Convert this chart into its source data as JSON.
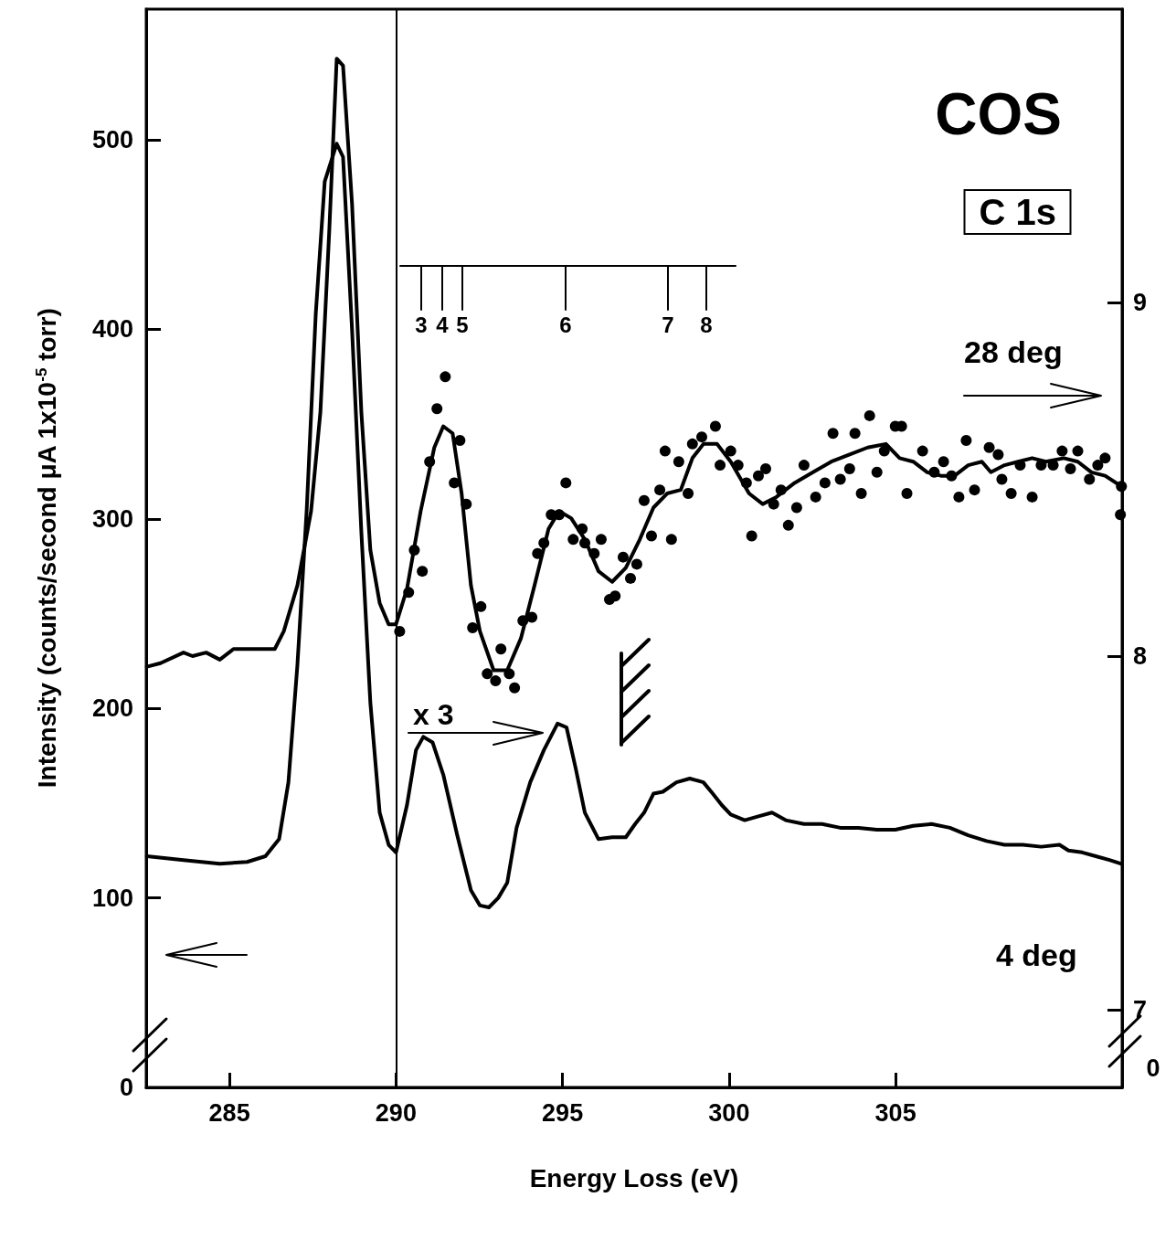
{
  "chart_data": {
    "type": "line",
    "title": "COS",
    "subtitle": "C 1s",
    "xlabel": "Energy Loss (eV)",
    "ylabel": "Intensity (counts/second μA 1x10$^{-5}$ torr)",
    "xlim": [
      282.5,
      311.8
    ],
    "xticks": [
      285,
      290,
      295,
      300,
      305
    ],
    "ylim": [
      0,
      569
    ],
    "yticks": [
      0,
      100,
      200,
      300,
      400,
      500
    ],
    "y2lim": [
      6.78,
      9.83
    ],
    "y2ticks": [
      7,
      8,
      9
    ],
    "grid": false,
    "legend": false,
    "line_style": "solid",
    "ref_lines": [
      {
        "axis": "x",
        "value": 290,
        "color": "#000000"
      }
    ],
    "annotations": [
      "x 3",
      "3",
      "4",
      "5",
      "6",
      "7",
      "8",
      "0"
    ],
    "series": [
      {
        "name": "28 deg",
        "type": "line",
        "axis": "y2",
        "marker": "none",
        "color": "#000000",
        "x": [
          282.52,
          282.93,
          283.62,
          283.89,
          284.3,
          284.71,
          285.12,
          285.26,
          285.67,
          286.36,
          286.63,
          287.04,
          287.45,
          287.73,
          288.0,
          288.22,
          288.41,
          288.68,
          288.96,
          289.23,
          289.51,
          289.78,
          290.0,
          290.33,
          290.74,
          291.15,
          291.42,
          291.7,
          291.97,
          292.25,
          292.52,
          292.93,
          293.34,
          293.75,
          294.16,
          294.58,
          294.9,
          295.26,
          295.67,
          296.08,
          296.49,
          296.9,
          297.32,
          297.73,
          298.14,
          298.55,
          298.9,
          299.23,
          299.64,
          300.05,
          300.6,
          301.01,
          301.42,
          301.97,
          302.52,
          303.07,
          303.62,
          304.16,
          304.71,
          305.12,
          305.53,
          305.95,
          306.36,
          306.77,
          307.18,
          307.59,
          307.86,
          308.27,
          308.68,
          309.1,
          309.51,
          310.05,
          310.47,
          310.88,
          311.29,
          311.78
        ],
        "values": [
          7.97,
          7.98,
          8.01,
          8.0,
          8.01,
          7.99,
          8.02,
          8.02,
          8.02,
          8.02,
          8.07,
          8.2,
          8.41,
          8.69,
          9.21,
          9.69,
          9.67,
          9.28,
          8.69,
          8.3,
          8.15,
          8.09,
          8.09,
          8.19,
          8.41,
          8.59,
          8.65,
          8.63,
          8.46,
          8.2,
          8.07,
          7.96,
          7.96,
          8.05,
          8.2,
          8.36,
          8.41,
          8.39,
          8.33,
          8.24,
          8.21,
          8.25,
          8.33,
          8.42,
          8.46,
          8.47,
          8.56,
          8.6,
          8.6,
          8.55,
          8.46,
          8.43,
          8.45,
          8.49,
          8.52,
          8.55,
          8.57,
          8.59,
          8.6,
          8.56,
          8.55,
          8.52,
          8.51,
          8.51,
          8.54,
          8.55,
          8.52,
          8.54,
          8.55,
          8.56,
          8.55,
          8.56,
          8.55,
          8.52,
          8.51,
          8.48
        ]
      },
      {
        "name": "4 deg",
        "type": "line",
        "marker": "none",
        "color": "#000000",
        "x": [
          282.52,
          283.62,
          284.71,
          285.53,
          286.08,
          286.49,
          286.77,
          287.04,
          287.32,
          287.59,
          287.86,
          288.22,
          288.41,
          288.68,
          288.96,
          289.23,
          289.51,
          289.78,
          290.0,
          290.33,
          290.6,
          290.82,
          291.1,
          291.42,
          291.84,
          292.25,
          292.52,
          292.79,
          293.07,
          293.34,
          293.62,
          294.03,
          294.44,
          294.85,
          295.12,
          295.4,
          295.67,
          296.08,
          296.49,
          296.9,
          297.18,
          297.45,
          297.73,
          298.01,
          298.42,
          298.82,
          299.23,
          299.51,
          299.78,
          300.05,
          300.47,
          300.88,
          301.29,
          301.7,
          302.25,
          302.79,
          303.34,
          303.89,
          304.44,
          304.99,
          305.53,
          306.08,
          306.63,
          307.18,
          307.73,
          308.27,
          308.82,
          309.37,
          309.92,
          310.19,
          310.6,
          311.01,
          311.42,
          311.78
        ],
        "values": [
          122,
          120,
          118,
          119,
          122,
          131,
          161,
          223,
          305,
          408,
          478,
          498,
          491,
          400,
          293,
          203,
          145,
          128,
          124,
          149,
          178,
          185,
          182,
          165,
          133,
          104,
          96,
          95,
          100,
          108,
          137,
          161,
          178,
          192,
          190,
          168,
          145,
          131,
          132,
          132,
          139,
          145,
          155,
          156,
          161,
          163,
          161,
          155,
          149,
          144,
          141,
          143,
          145,
          141,
          139,
          139,
          137,
          137,
          136,
          136,
          138,
          139,
          137,
          133,
          130,
          128,
          128,
          127,
          128,
          125,
          124,
          122,
          120,
          118
        ]
      },
      {
        "type": "scatter",
        "axis": "y2",
        "marker": "circle",
        "color": "#000000",
        "x": [
          290.11,
          290.38,
          290.55,
          290.79,
          291.01,
          291.23,
          291.48,
          291.75,
          291.92,
          292.11,
          292.3,
          292.55,
          292.74,
          292.99,
          293.15,
          293.4,
          293.56,
          293.81,
          294.08,
          294.25,
          294.44,
          294.66,
          294.9,
          295.1,
          295.32,
          295.59,
          295.67,
          295.95,
          296.16,
          296.41,
          296.58,
          296.82,
          297.04,
          297.23,
          297.45,
          297.67,
          297.92,
          298.08,
          298.27,
          298.49,
          298.77,
          298.9,
          299.18,
          299.59,
          299.73,
          300.05,
          300.27,
          300.52,
          300.68,
          300.88,
          301.1,
          301.34,
          301.56,
          301.78,
          302.03,
          302.25,
          302.6,
          302.88,
          303.12,
          303.34,
          303.62,
          303.78,
          303.97,
          304.22,
          304.44,
          304.66,
          304.99,
          305.18,
          305.34,
          305.81,
          306.16,
          306.44,
          306.68,
          306.9,
          307.12,
          307.37,
          307.81,
          308.08,
          308.19,
          308.47,
          308.74,
          309.1,
          309.37,
          309.73,
          310.0,
          310.25,
          310.47,
          310.82,
          311.07,
          311.29,
          311.75,
          311.78
        ],
        "values": [
          8.07,
          8.18,
          8.3,
          8.24,
          8.55,
          8.7,
          8.79,
          8.49,
          8.61,
          8.43,
          8.08,
          8.14,
          7.95,
          7.93,
          8.02,
          7.95,
          7.91,
          8.1,
          8.11,
          8.29,
          8.32,
          8.4,
          8.4,
          8.49,
          8.33,
          8.36,
          8.32,
          8.29,
          8.33,
          8.16,
          8.17,
          8.28,
          8.22,
          8.26,
          8.44,
          8.34,
          8.47,
          8.58,
          8.33,
          8.55,
          8.46,
          8.6,
          8.62,
          8.65,
          8.54,
          8.58,
          8.54,
          8.49,
          8.34,
          8.51,
          8.53,
          8.43,
          8.47,
          8.37,
          8.42,
          8.54,
          8.45,
          8.49,
          8.63,
          8.5,
          8.53,
          8.63,
          8.46,
          8.68,
          8.52,
          8.58,
          8.65,
          8.65,
          8.46,
          8.58,
          8.52,
          8.55,
          8.51,
          8.45,
          8.61,
          8.47,
          8.59,
          8.57,
          8.5,
          8.46,
          8.54,
          8.45,
          8.54,
          8.54,
          8.58,
          8.53,
          8.58,
          8.5,
          8.54,
          8.56,
          8.4,
          8.48
        ]
      }
    ]
  }
}
